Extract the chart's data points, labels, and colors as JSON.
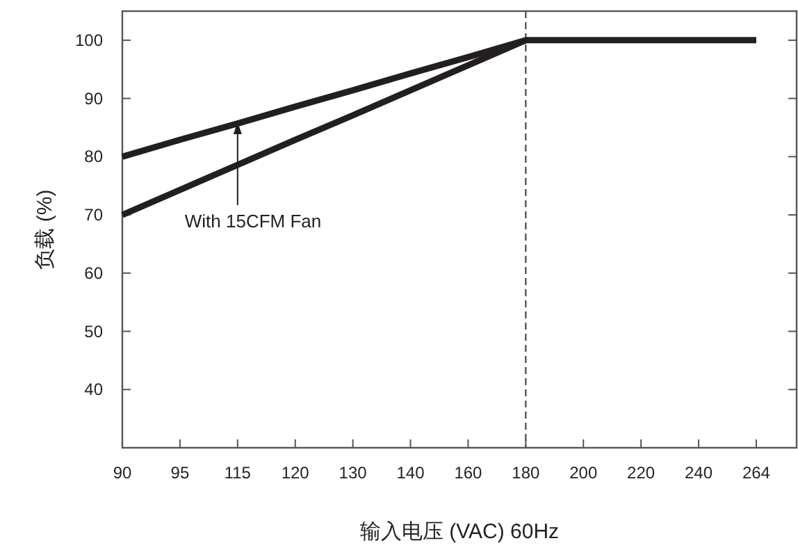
{
  "chart_data": {
    "type": "line",
    "xlabel": "输入电压 (VAC) 60Hz",
    "ylabel": "负载 (%)",
    "categories": [
      "90",
      "95",
      "115",
      "120",
      "130",
      "140",
      "160",
      "180",
      "200",
      "220",
      "240",
      "264"
    ],
    "series": [
      {
        "color": "#231f20",
        "values": [
          80,
          82.9,
          85.7,
          88.6,
          91.4,
          94.3,
          97.1,
          100,
          100,
          100,
          100,
          100
        ]
      },
      {
        "color": "#231f20",
        "values": [
          70,
          74.3,
          78.6,
          82.9,
          87.1,
          91.4,
          95.7,
          100,
          null,
          null,
          null,
          null
        ]
      }
    ],
    "ylim": [
      30,
      105
    ],
    "yticks": [
      40,
      50,
      60,
      70,
      80,
      90,
      100
    ],
    "grid": false,
    "marker": "none",
    "line_style": "solid",
    "ref_lines": [
      {
        "axis": "x",
        "value": "180",
        "color": "#555555",
        "line_style": "dashed"
      }
    ],
    "annotations": [
      {
        "text": "With 15CFM Fan",
        "x": "115",
        "y": 86
      }
    ]
  }
}
